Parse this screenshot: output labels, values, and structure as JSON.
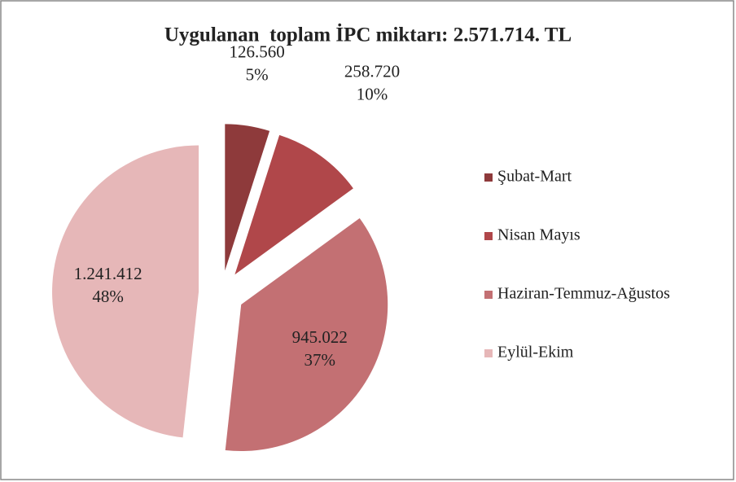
{
  "chart_data": {
    "type": "pie",
    "title": "Uygulanan  toplam İPC miktarı: 2.571.714. TL",
    "categories": [
      "Şubat-Mart",
      "Nisan Mayıs",
      "Haziran-Temmuz-Ağustos",
      "Eylül-Ekim"
    ],
    "values": [
      126560,
      258720,
      945022,
      1241412
    ],
    "value_labels": [
      "126.560",
      "258.720",
      "945.022",
      "1.241.412"
    ],
    "percent_labels": [
      "5%",
      "10%",
      "37%",
      "48%"
    ],
    "colors": [
      "#8e3a3b",
      "#b0474a",
      "#c37073",
      "#e6b7b8"
    ],
    "legend": "right"
  }
}
